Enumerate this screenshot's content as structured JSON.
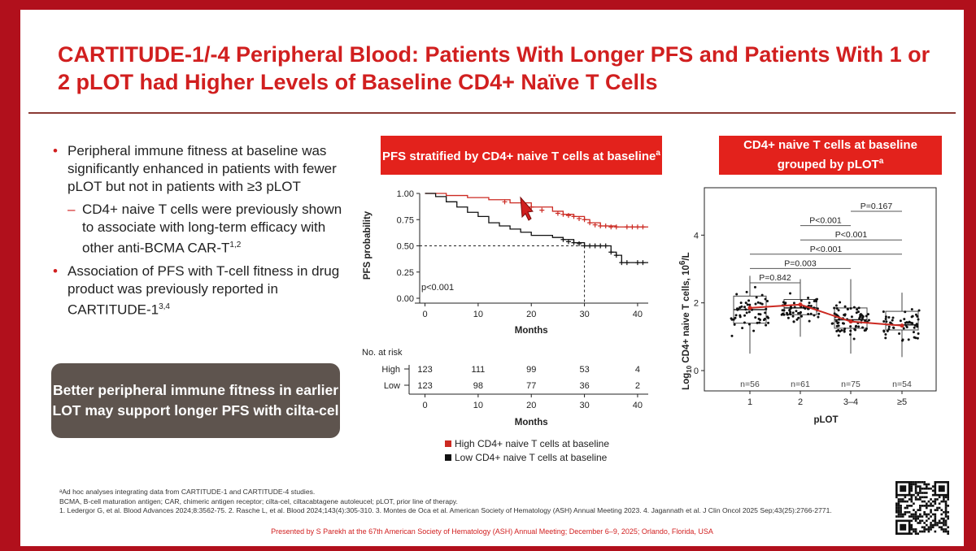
{
  "title": "CARTITUDE-1/-4 Peripheral Blood: Patients With Longer PFS and Patients With 1 or 2 pLOT had Higher Levels of Baseline CD4+ Naïve T Cells",
  "bullets": {
    "b1": "Peripheral immune fitness at baseline was significantly enhanced in patients with fewer pLOT but not in patients with ≥3 pLOT",
    "b1_sub": "CD4+ naive T cells were previously shown to associate with long-term efficacy with other anti-BCMA CAR-T",
    "b1_sub_sup": "1,2",
    "b2": "Association of PFS with T-cell fitness in drug product was previously reported in CARTITUDE-1",
    "b2_sup": "3,4"
  },
  "callout": "Better peripheral immune fitness in earlier LOT may support longer PFS with cilta-cel",
  "colors": {
    "brand_red": "#d11f1f",
    "banner_red": "#e3221c",
    "high": "#cc2a22",
    "low": "#111111",
    "callout_bg": "#5e544e"
  },
  "chart_data": [
    {
      "type": "line",
      "subtype": "kaplan-meier",
      "title": "PFS stratified by CD4+ naive T cells at baseline",
      "title_sup": "a",
      "xlabel": "Months",
      "ylabel": "PFS probability",
      "xlim": [
        -1,
        42
      ],
      "ylim": [
        0,
        1
      ],
      "xticks": [
        0,
        10,
        20,
        30,
        40
      ],
      "yticks": [
        0.0,
        0.25,
        0.5,
        0.75,
        1.0
      ],
      "ytick_labels": [
        "0.00",
        "0.25",
        "0.50",
        "0.75",
        "1.00"
      ],
      "annotation": "p<0.001",
      "median_line": {
        "y": 0.5,
        "x": 30
      },
      "series": [
        {
          "name": "High CD4+ naive T cells at baseline",
          "steps": [
            [
              0,
              1.0
            ],
            [
              2,
              1.0
            ],
            [
              4,
              0.98
            ],
            [
              8,
              0.96
            ],
            [
              12,
              0.94
            ],
            [
              16,
              0.91
            ],
            [
              20,
              0.87
            ],
            [
              24,
              0.83
            ],
            [
              26,
              0.8
            ],
            [
              28,
              0.78
            ],
            [
              30,
              0.75
            ],
            [
              31,
              0.72
            ],
            [
              33,
              0.69
            ],
            [
              36,
              0.68
            ],
            [
              42,
              0.68
            ]
          ],
          "censors": [
            [
              15,
              0.92
            ],
            [
              20,
              0.87
            ],
            [
              22,
              0.84
            ],
            [
              25,
              0.81
            ],
            [
              26,
              0.8
            ],
            [
              27,
              0.79
            ],
            [
              28,
              0.78
            ],
            [
              29,
              0.76
            ],
            [
              30,
              0.75
            ],
            [
              31,
              0.72
            ],
            [
              32,
              0.7
            ],
            [
              33,
              0.69
            ],
            [
              34,
              0.69
            ],
            [
              35,
              0.68
            ],
            [
              36,
              0.68
            ],
            [
              38,
              0.68
            ],
            [
              39,
              0.68
            ],
            [
              40,
              0.68
            ],
            [
              41,
              0.68
            ]
          ]
        },
        {
          "name": "Low CD4+ naive T cells at baseline",
          "steps": [
            [
              0,
              1.0
            ],
            [
              2,
              0.97
            ],
            [
              4,
              0.92
            ],
            [
              6,
              0.87
            ],
            [
              8,
              0.82
            ],
            [
              10,
              0.78
            ],
            [
              12,
              0.72
            ],
            [
              14,
              0.69
            ],
            [
              16,
              0.66
            ],
            [
              18,
              0.63
            ],
            [
              20,
              0.6
            ],
            [
              24,
              0.58
            ],
            [
              26,
              0.56
            ],
            [
              28,
              0.53
            ],
            [
              30,
              0.5
            ],
            [
              34,
              0.5
            ],
            [
              35,
              0.44
            ],
            [
              36,
              0.41
            ],
            [
              37,
              0.34
            ],
            [
              42,
              0.34
            ]
          ],
          "censors": [
            [
              26,
              0.56
            ],
            [
              27,
              0.54
            ],
            [
              28,
              0.53
            ],
            [
              29,
              0.52
            ],
            [
              30,
              0.5
            ],
            [
              31,
              0.5
            ],
            [
              32,
              0.5
            ],
            [
              33,
              0.5
            ],
            [
              34,
              0.5
            ],
            [
              35,
              0.44
            ],
            [
              36,
              0.41
            ],
            [
              37,
              0.34
            ],
            [
              38,
              0.34
            ],
            [
              40,
              0.34
            ],
            [
              41,
              0.34
            ]
          ]
        }
      ],
      "risk_table": {
        "label": "No. at risk",
        "x": [
          0,
          10,
          20,
          30,
          40
        ],
        "xlabel": "Months",
        "rows": [
          {
            "name": "High",
            "values": [
              "123",
              "111",
              "99",
              "53",
              "4"
            ]
          },
          {
            "name": "Low",
            "values": [
              "123",
              "98",
              "77",
              "36",
              "2"
            ]
          }
        ]
      },
      "legend": [
        "High CD4+ naive T cells at baseline",
        "Low CD4+ naive T cells at baseline"
      ]
    },
    {
      "type": "box",
      "title": "CD4+ naive T cells at baseline grouped by pLOT",
      "title_sup": "a",
      "xlabel": "pLOT",
      "ylabel": "Log10 CD4+ naive T cells, 10⁶/L",
      "ylim": [
        -0.6,
        5.4
      ],
      "yticks": [
        0,
        2,
        4
      ],
      "categories": [
        "1",
        "2",
        "3–4",
        "≥5"
      ],
      "n_labels": [
        "n=56",
        "n=61",
        "n=75",
        "n=54"
      ],
      "boxes": [
        {
          "q1": 1.4,
          "median": 1.8,
          "q3": 2.2,
          "whisker_low": 0.5,
          "whisker_high": 2.8
        },
        {
          "q1": 1.65,
          "median": 1.85,
          "q3": 2.1,
          "whisker_low": 1.0,
          "whisker_high": 2.7
        },
        {
          "q1": 1.25,
          "median": 1.5,
          "q3": 1.85,
          "whisker_low": 0.5,
          "whisker_high": 2.7
        },
        {
          "q1": 1.2,
          "median": 1.35,
          "q3": 1.75,
          "whisker_low": 0.4,
          "whisker_high": 2.3
        }
      ],
      "mean_line": [
        1.85,
        1.95,
        1.45,
        1.33
      ],
      "comparisons": [
        {
          "groups": [
            "1",
            "2"
          ],
          "label": "P=0.842"
        },
        {
          "groups": [
            "1",
            "3–4"
          ],
          "label": "P=0.003"
        },
        {
          "groups": [
            "1",
            "≥5"
          ],
          "label": "P<0.001"
        },
        {
          "groups": [
            "2",
            "3–4"
          ],
          "label": "P<0.001"
        },
        {
          "groups": [
            "2",
            "≥5"
          ],
          "label": "P<0.001"
        },
        {
          "groups": [
            "3–4",
            "≥5"
          ],
          "label": "P=0.167"
        }
      ]
    }
  ],
  "footnotes": {
    "a": "ᵃAd hoc analyses integrating data from CARTITUDE-1 and CARTITUDE-4 studies.",
    "abbrev": "BCMA, B-cell maturation antigen; CAR, chimeric antigen receptor; cilta-cel, ciltacabtagene autoleucel; pLOT, prior line of therapy.",
    "refs": "1. Ledergor G, et al. Blood Advances 2024;8:3562-75. 2. Rasche L, et al. Blood 2024;143(4):305-310. 3. Montes de Oca et al. American Society of Hematology (ASH) Annual Meeting 2023. 4. Jagannath et al. J Clin Oncol 2025 Sep;43(25):2766-2771."
  },
  "presented_by": "Presented by S Parekh at the 67th American Society of Hematology (ASH) Annual Meeting; December 6–9, 2025; Orlando, Florida, USA"
}
